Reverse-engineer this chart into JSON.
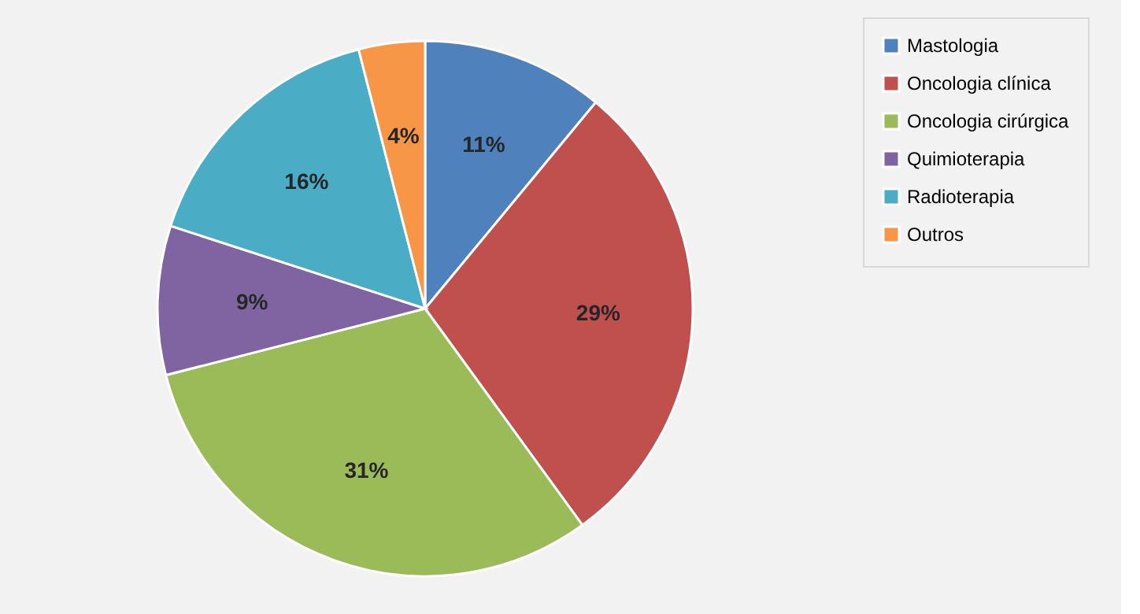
{
  "chart_data": {
    "type": "pie",
    "categories": [
      "Mastologia",
      "Oncologia clínica",
      "Oncologia cirúrgica",
      "Quimioterapia",
      "Radioterapia",
      "Outros"
    ],
    "values": [
      11,
      29,
      31,
      9,
      16,
      4
    ],
    "colors": [
      "#4f81bd",
      "#c0504d",
      "#9bbb59",
      "#8064a2",
      "#4bacc6",
      "#f79646"
    ],
    "value_labels": [
      "11%",
      "29%",
      "31%",
      "9%",
      "16%",
      "4%"
    ],
    "legend": "right"
  }
}
